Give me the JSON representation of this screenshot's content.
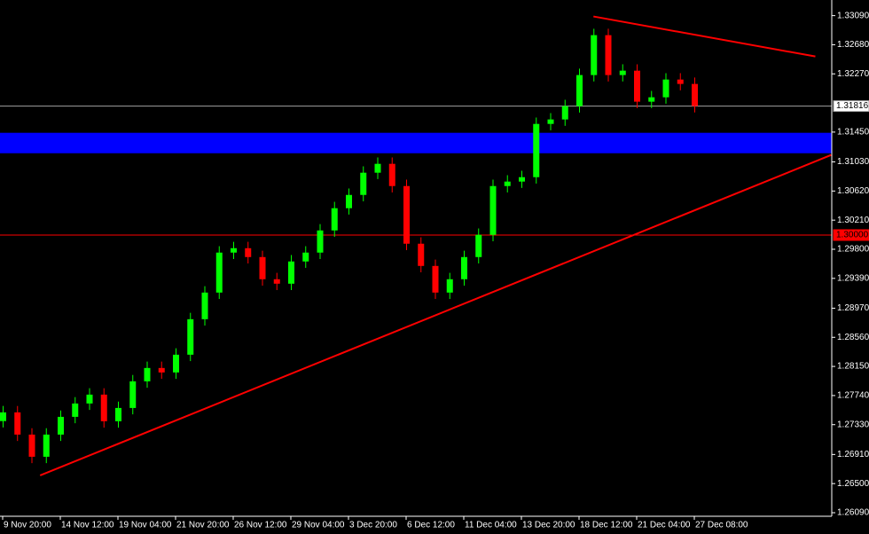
{
  "chart_data": {
    "type": "candlestick",
    "categories": [
      "9 Nov 20:00",
      null,
      null,
      null,
      "14 Nov 12:00",
      null,
      null,
      null,
      "19 Nov 04:00",
      null,
      null,
      null,
      "21 Nov 20:00",
      null,
      null,
      null,
      "26 Nov 12:00",
      null,
      null,
      null,
      "29 Nov 04:00",
      null,
      null,
      null,
      "3 Dec 20:00",
      null,
      null,
      null,
      "6 Dec 12:00",
      null,
      null,
      null,
      "11 Dec 04:00",
      null,
      null,
      null,
      "13 Dec 20:00",
      null,
      null,
      null,
      "18 Dec 12:00",
      null,
      null,
      null,
      "21 Dec 04:00",
      null,
      null,
      null,
      "27 Dec 08:00"
    ],
    "open": [
      1.2738,
      1.27503,
      1.2719,
      1.26878,
      1.2719,
      1.2744,
      1.27628,
      1.27753,
      1.27378,
      1.27565,
      1.2794,
      1.28128,
      1.28065,
      1.28315,
      1.28815,
      1.2919,
      1.29753,
      1.29815,
      1.2969,
      1.29378,
      1.29315,
      1.29628,
      1.29753,
      1.30065,
      1.30378,
      1.30565,
      1.30878,
      1.31003,
      1.3069,
      1.29878,
      1.29565,
      1.2919,
      1.29378,
      1.2969,
      1.30003,
      1.3069,
      1.30753,
      1.30815,
      1.31565,
      1.31628,
      1.31815,
      1.32253,
      1.32815,
      1.32253,
      1.32315,
      1.31878,
      1.3194,
      1.3219,
      1.32128
    ],
    "high": [
      1.27593,
      1.27593,
      1.2728,
      1.2728,
      1.2753,
      1.27718,
      1.27843,
      1.27843,
      1.27655,
      1.2803,
      1.28218,
      1.28218,
      1.28405,
      1.28905,
      1.2928,
      1.29843,
      1.29905,
      1.29905,
      1.2978,
      1.29468,
      1.29718,
      1.29843,
      1.30155,
      1.30468,
      1.30655,
      1.30968,
      1.31093,
      1.31093,
      1.3078,
      1.29968,
      1.29655,
      1.29468,
      1.2978,
      1.30093,
      1.3078,
      1.30843,
      1.30905,
      1.31655,
      1.31718,
      1.31905,
      1.32343,
      1.32905,
      1.32905,
      1.32405,
      1.32405,
      1.3203,
      1.3228,
      1.3228,
      1.32218
    ],
    "low": [
      1.2729,
      1.271,
      1.26788,
      1.26788,
      1.271,
      1.2735,
      1.27538,
      1.27288,
      1.27288,
      1.27475,
      1.2785,
      1.27975,
      1.27975,
      1.28225,
      1.28725,
      1.291,
      1.29663,
      1.296,
      1.29288,
      1.29225,
      1.29225,
      1.29538,
      1.29663,
      1.29975,
      1.30288,
      1.30475,
      1.30788,
      1.306,
      1.29788,
      1.29475,
      1.291,
      1.291,
      1.29288,
      1.296,
      1.29913,
      1.306,
      1.30663,
      1.30725,
      1.31475,
      1.31538,
      1.31725,
      1.32163,
      1.32163,
      1.32163,
      1.31788,
      1.31788,
      1.3185,
      1.32038,
      1.31726
    ],
    "close": [
      1.27503,
      1.2719,
      1.26878,
      1.2719,
      1.2744,
      1.27628,
      1.27753,
      1.27378,
      1.27565,
      1.2794,
      1.28128,
      1.28065,
      1.28315,
      1.28815,
      1.2919,
      1.29753,
      1.29815,
      1.2969,
      1.29378,
      1.29315,
      1.29628,
      1.29753,
      1.30065,
      1.30378,
      1.30565,
      1.30878,
      1.31003,
      1.3069,
      1.29878,
      1.29565,
      1.2919,
      1.29378,
      1.2969,
      1.30003,
      1.3069,
      1.30753,
      1.30815,
      1.31565,
      1.31628,
      1.31815,
      1.32253,
      1.32815,
      1.32253,
      1.32315,
      1.31878,
      1.3194,
      1.3219,
      1.32128,
      1.31816
    ],
    "up_color": "#00ff00",
    "down_color": "#ff0000",
    "ylim": [
      1.2604,
      1.3331
    ],
    "yticks": [
      {
        "value": 1.3309,
        "label": "1.33090"
      },
      {
        "value": 1.3268,
        "label": "1.32680"
      },
      {
        "value": 1.3227,
        "label": "1.32270"
      },
      {
        "value": 1.3145,
        "label": "1.31450"
      },
      {
        "value": 1.3103,
        "label": "1.31030"
      },
      {
        "value": 1.3062,
        "label": "1.30620"
      },
      {
        "value": 1.3021,
        "label": "1.30210"
      },
      {
        "value": 1.298,
        "label": "1.29800"
      },
      {
        "value": 1.2939,
        "label": "1.29390"
      },
      {
        "value": 1.2897,
        "label": "1.28970"
      },
      {
        "value": 1.2856,
        "label": "1.28560"
      },
      {
        "value": 1.2815,
        "label": "1.28150"
      },
      {
        "value": 1.2774,
        "label": "1.27740"
      },
      {
        "value": 1.2733,
        "label": "1.27330"
      },
      {
        "value": 1.2691,
        "label": "1.26910"
      },
      {
        "value": 1.265,
        "label": "1.26500"
      },
      {
        "value": 1.2609,
        "label": "1.26090"
      }
    ],
    "hlines": [
      {
        "value": 1.31816,
        "label": "1.31816",
        "color": "#a0a0a0"
      },
      {
        "value": 1.3,
        "label": "1.30000",
        "color": "#ff0000"
      }
    ],
    "zones": [
      {
        "from": 1.31152,
        "to": 1.3144,
        "color": "#0000ff"
      }
    ],
    "trendlines": [
      {
        "x": [
          2.6,
          57.5
        ],
        "y": [
          1.26615,
          1.311275
        ],
        "color": "#ff0000"
      },
      {
        "x": [
          41,
          56.4
        ],
        "y": [
          1.33078,
          1.32515
        ],
        "color": "#ff0000"
      }
    ]
  }
}
